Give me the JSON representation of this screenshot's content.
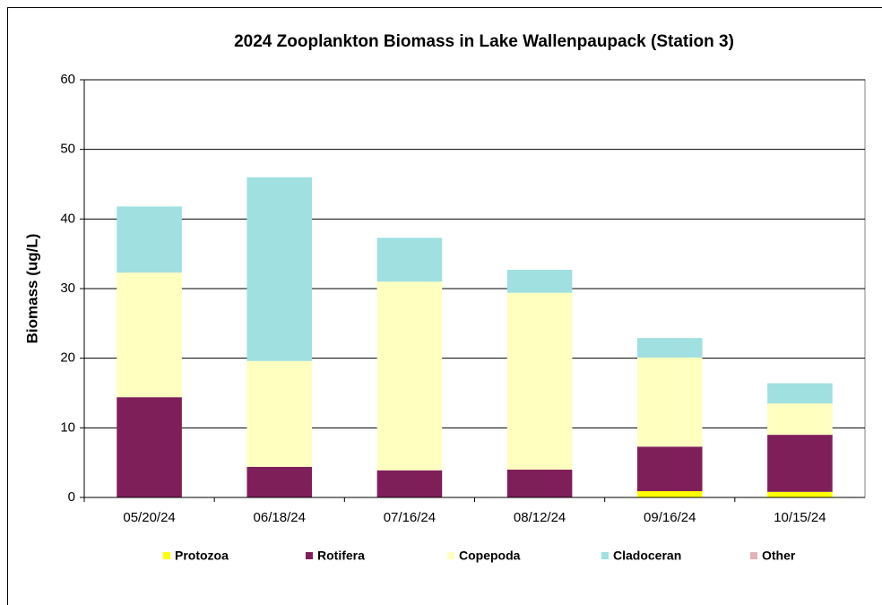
{
  "chart_data": {
    "type": "stacked_bar",
    "title": "2024 Zooplankton Biomass in Lake Wallenpaupack (Station 3)",
    "y_label": "Biomass (ug/L)",
    "categories": [
      "05/20/24",
      "06/18/24",
      "07/16/24",
      "08/12/24",
      "09/16/24",
      "10/15/24"
    ],
    "series": [
      {
        "name": "Protozoa",
        "color": "#ffff00",
        "values": [
          0,
          0,
          0,
          0,
          0.9,
          0.8
        ]
      },
      {
        "name": "Rotifera",
        "color": "#7f1f5a",
        "values": [
          14.4,
          4.4,
          3.9,
          4.0,
          6.4,
          8.2
        ]
      },
      {
        "name": "Copepoda",
        "color": "#ffffc0",
        "values": [
          17.9,
          15.2,
          27.1,
          25.4,
          12.8,
          4.5
        ]
      },
      {
        "name": "Cladoceran",
        "color": "#a0e0e0",
        "values": [
          9.5,
          26.4,
          6.3,
          3.3,
          2.8,
          2.9
        ]
      },
      {
        "name": "Other",
        "color": "#e6b0b8",
        "values": [
          0,
          0,
          0,
          0,
          0,
          0
        ]
      }
    ],
    "ylim": [
      0,
      60
    ],
    "yticks": [
      0,
      10,
      20,
      30,
      40,
      50,
      60
    ],
    "grid": true,
    "legend": "bottom"
  }
}
